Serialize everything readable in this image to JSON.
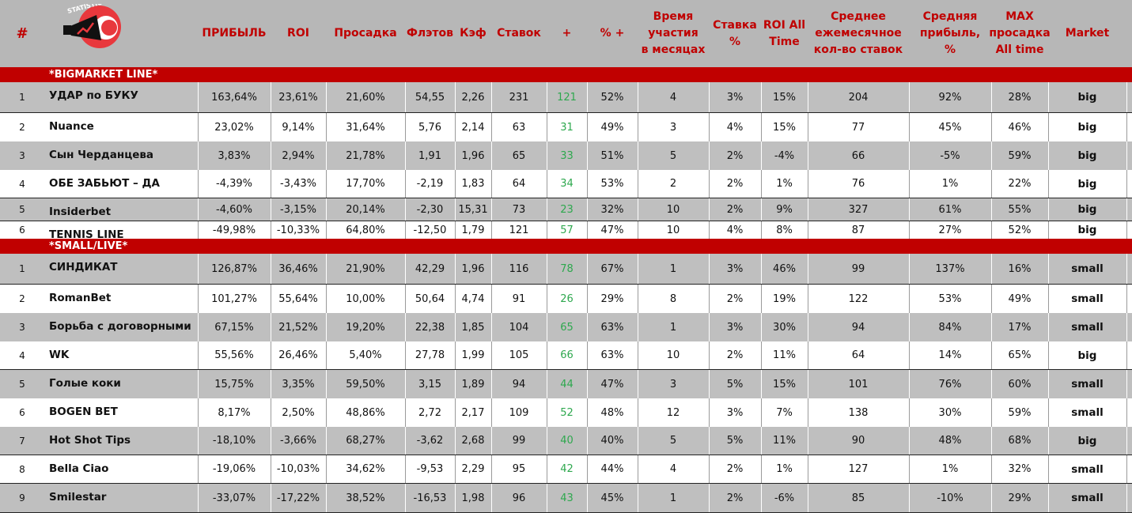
{
  "header": {
    "hash": "#",
    "columns": [
      "ПРИБЫЛЬ",
      "ROI",
      "Просадка",
      "Флэтов",
      "Кэф",
      "Ставок",
      "+",
      "% +",
      "Время\nучастия\nв месяцах",
      "Ставка\n%",
      "ROI All\nTime",
      "Среднее\nежемесячное\nкол-во ставок",
      "Средняя\nприбыль,\n%",
      "MAX\nпросадка\nAll time",
      "Market"
    ],
    "logo_text": "STATISTIC",
    "logo_colors": {
      "circle": "#e8383d",
      "ring": "#ffffff",
      "megaphone": "#111111"
    }
  },
  "colors": {
    "accent_red": "#c00000",
    "header_bg": "#b7b7b7",
    "row_gray": "#bfbfbf",
    "plus_green": "#2ea84e"
  },
  "sections": [
    {
      "title": "*BIGMARKET LINE*",
      "rows": [
        {
          "num": "1",
          "name": "УДАР по БУКУ",
          "cells": [
            "163,64%",
            "23,61%",
            "21,60%",
            "54,55",
            "2,26",
            "231",
            "121",
            "52%",
            "4",
            "3%",
            "15%",
            "204",
            "92%",
            "28%",
            "big"
          ]
        },
        {
          "num": "2",
          "name": "Nuance",
          "cells": [
            "23,02%",
            "9,14%",
            "31,64%",
            "5,76",
            "2,14",
            "63",
            "31",
            "49%",
            "3",
            "4%",
            "15%",
            "77",
            "45%",
            "46%",
            "big"
          ]
        },
        {
          "num": "3",
          "name": "Сын Черданцева",
          "cells": [
            "3,83%",
            "2,94%",
            "21,78%",
            "1,91",
            "1,96",
            "65",
            "33",
            "51%",
            "5",
            "2%",
            "-4%",
            "66",
            "-5%",
            "59%",
            "big"
          ]
        },
        {
          "num": "4",
          "name": "ОБЕ ЗАБЬЮТ – ДА",
          "cells": [
            "-4,39%",
            "-3,43%",
            "17,70%",
            "-2,19",
            "1,83",
            "64",
            "34",
            "53%",
            "2",
            "2%",
            "1%",
            "76",
            "1%",
            "22%",
            "big"
          ]
        },
        {
          "num": "5",
          "name": "Insiderbet",
          "cells": [
            "-4,60%",
            "-3,15%",
            "20,14%",
            "-2,30",
            "15,31",
            "73",
            "23",
            "32%",
            "10",
            "2%",
            "9%",
            "327",
            "61%",
            "55%",
            "big"
          ]
        },
        {
          "num": "6",
          "name": "TENNIS LINE",
          "cells": [
            "-49,98%",
            "-10,33%",
            "64,80%",
            "-12,50",
            "1,79",
            "121",
            "57",
            "47%",
            "10",
            "4%",
            "8%",
            "87",
            "27%",
            "52%",
            "big"
          ]
        }
      ]
    },
    {
      "title": "*SMALL/LIVE*",
      "rows": [
        {
          "num": "1",
          "name": "СИНДИКАТ",
          "cells": [
            "126,87%",
            "36,46%",
            "21,90%",
            "42,29",
            "1,96",
            "116",
            "78",
            "67%",
            "1",
            "3%",
            "46%",
            "99",
            "137%",
            "16%",
            "small"
          ]
        },
        {
          "num": "2",
          "name": "RomanBet",
          "cells": [
            "101,27%",
            "55,64%",
            "10,00%",
            "50,64",
            "4,74",
            "91",
            "26",
            "29%",
            "8",
            "2%",
            "19%",
            "122",
            "53%",
            "49%",
            "small"
          ]
        },
        {
          "num": "3",
          "name": "Борьба с договорными",
          "cells": [
            "67,15%",
            "21,52%",
            "19,20%",
            "22,38",
            "1,85",
            "104",
            "65",
            "63%",
            "1",
            "3%",
            "30%",
            "94",
            "84%",
            "17%",
            "small"
          ]
        },
        {
          "num": "4",
          "name": "WK",
          "cells": [
            "55,56%",
            "26,46%",
            "5,40%",
            "27,78",
            "1,99",
            "105",
            "66",
            "63%",
            "10",
            "2%",
            "11%",
            "64",
            "14%",
            "65%",
            "big"
          ]
        },
        {
          "num": "5",
          "name": "Голые коки",
          "cells": [
            "15,75%",
            "3,35%",
            "59,50%",
            "3,15",
            "1,89",
            "94",
            "44",
            "47%",
            "3",
            "5%",
            "15%",
            "101",
            "76%",
            "60%",
            "small"
          ]
        },
        {
          "num": "6",
          "name": "BOGEN BET",
          "cells": [
            "8,17%",
            "2,50%",
            "48,86%",
            "2,72",
            "2,17",
            "109",
            "52",
            "48%",
            "12",
            "3%",
            "7%",
            "138",
            "30%",
            "59%",
            "small"
          ]
        },
        {
          "num": "7",
          "name": "Hot Shot Tips",
          "cells": [
            "-18,10%",
            "-3,66%",
            "68,27%",
            "-3,62",
            "2,68",
            "99",
            "40",
            "40%",
            "5",
            "5%",
            "11%",
            "90",
            "48%",
            "68%",
            "big"
          ]
        },
        {
          "num": "8",
          "name": "Bella Ciao",
          "cells": [
            "-19,06%",
            "-10,03%",
            "34,62%",
            "-9,53",
            "2,29",
            "95",
            "42",
            "44%",
            "4",
            "2%",
            "1%",
            "127",
            "1%",
            "32%",
            "small"
          ]
        },
        {
          "num": "9",
          "name": "Smilestar",
          "cells": [
            "-33,07%",
            "-17,22%",
            "38,52%",
            "-16,53",
            "1,98",
            "96",
            "43",
            "45%",
            "1",
            "2%",
            "-6%",
            "85",
            "-10%",
            "29%",
            "small"
          ]
        }
      ]
    }
  ]
}
